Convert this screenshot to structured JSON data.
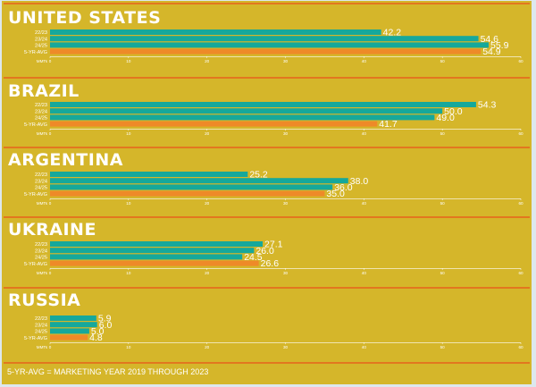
{
  "footnote": "5-YR-AVG = MARKETING YEAR 2019 THROUGH 2023",
  "colors": {
    "background": "#d5b62a",
    "bar_teal": "#16a89b",
    "bar_avg": "#ee8a28",
    "divider": "#e2771f",
    "text": "#ffffff"
  },
  "chart_data": [
    {
      "type": "bar",
      "orientation": "horizontal",
      "title": "UNITED STATES",
      "categories": [
        "22/23",
        "23/24",
        "24/25",
        "5-YR-AVG"
      ],
      "values": [
        42.2,
        54.6,
        55.9,
        54.9
      ],
      "value_labels": [
        "42.2",
        "54.6",
        "55.9",
        "54.9"
      ],
      "xlabel": "MMTs",
      "xlim": [
        0,
        60
      ],
      "ticks": [
        0,
        10,
        20,
        30,
        40,
        50,
        60
      ]
    },
    {
      "type": "bar",
      "orientation": "horizontal",
      "title": "BRAZIL",
      "categories": [
        "22/23",
        "23/24",
        "24/25",
        "5-YR-AVG"
      ],
      "values": [
        54.3,
        50.0,
        49.0,
        41.7
      ],
      "value_labels": [
        "54.3",
        "50.0",
        "49.0",
        "41.7"
      ],
      "xlabel": "MMTs",
      "xlim": [
        0,
        60
      ],
      "ticks": [
        0,
        10,
        20,
        30,
        40,
        50,
        60
      ]
    },
    {
      "type": "bar",
      "orientation": "horizontal",
      "title": "ARGENTINA",
      "categories": [
        "22/23",
        "23/24",
        "24/25",
        "5-YR-AVG"
      ],
      "values": [
        25.2,
        38.0,
        36.0,
        35.0
      ],
      "value_labels": [
        "25.2",
        "38.0",
        "36.0",
        "35.0"
      ],
      "xlabel": "MMTs",
      "xlim": [
        0,
        60
      ],
      "ticks": [
        0,
        10,
        20,
        30,
        40,
        50,
        60
      ]
    },
    {
      "type": "bar",
      "orientation": "horizontal",
      "title": "UKRAINE",
      "categories": [
        "22/23",
        "23/24",
        "24/25",
        "5-YR-AVG"
      ],
      "values": [
        27.1,
        26.0,
        24.5,
        26.6
      ],
      "value_labels": [
        "27.1",
        "26.0",
        "24.5",
        "26.6"
      ],
      "xlabel": "MMTs",
      "xlim": [
        0,
        60
      ],
      "ticks": [
        0,
        10,
        20,
        30,
        40,
        50,
        60
      ]
    },
    {
      "type": "bar",
      "orientation": "horizontal",
      "title": "RUSSIA",
      "categories": [
        "22/23",
        "23/24",
        "24/25",
        "5-YR-AVG"
      ],
      "values": [
        5.9,
        6.0,
        5.0,
        4.8
      ],
      "value_labels": [
        "5.9",
        "6.0",
        "5.0",
        "4.8"
      ],
      "xlabel": "MMTs",
      "xlim": [
        0,
        60
      ],
      "ticks": [
        0,
        10,
        20,
        30,
        40,
        50,
        60
      ]
    }
  ]
}
